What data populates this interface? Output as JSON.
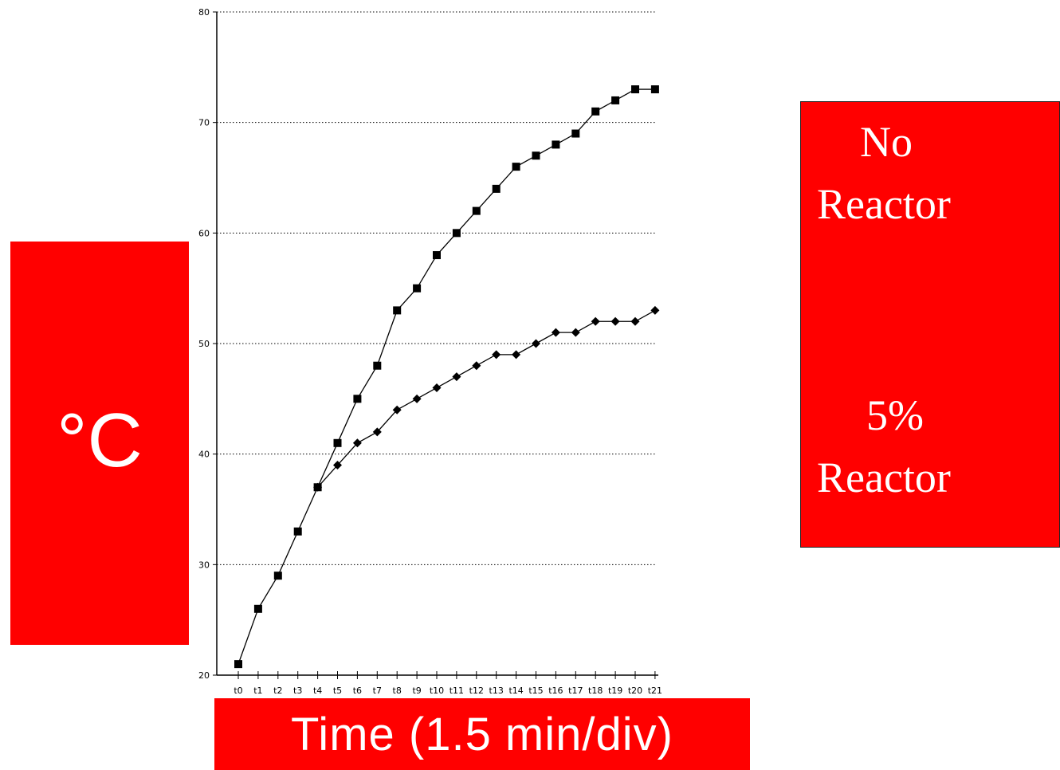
{
  "colors": {
    "label_box": "#ff0000",
    "label_text": "#ffffff",
    "series": "#000000",
    "grid": "#000000"
  },
  "chart_data": {
    "type": "line",
    "title": "",
    "xlabel": "Time (1.5 min/div)",
    "ylabel": "°C",
    "categories": [
      "t0",
      "t1",
      "t2",
      "t3",
      "t4",
      "t5",
      "t6",
      "t7",
      "t8",
      "t9",
      "t10",
      "t11",
      "t12",
      "t13",
      "t14",
      "t15",
      "t16",
      "t17",
      "t18",
      "t19",
      "t20",
      "t21"
    ],
    "ylim": [
      20,
      80
    ],
    "yticks": [
      "20",
      "30",
      "40",
      "50",
      "60",
      "70",
      "80"
    ],
    "grid": "horizontal dotted",
    "legend": "right",
    "series": [
      {
        "name": "No Reactor",
        "marker": "square",
        "values": [
          21,
          26,
          29,
          33,
          37,
          41,
          45,
          48,
          53,
          55,
          58,
          60,
          62,
          64,
          66,
          67,
          68,
          69,
          71,
          72,
          73,
          73
        ]
      },
      {
        "name": "5% Reactor",
        "marker": "diamond",
        "values": [
          null,
          null,
          null,
          null,
          37,
          39,
          41,
          42,
          44,
          45,
          46,
          47,
          48,
          49,
          49,
          50,
          51,
          51,
          52,
          52,
          52,
          53
        ]
      }
    ]
  },
  "legend": {
    "no_reactor_line1": "No",
    "no_reactor_line2": "Reactor",
    "reactor5_line1": "5%",
    "reactor5_line2": "Reactor"
  }
}
